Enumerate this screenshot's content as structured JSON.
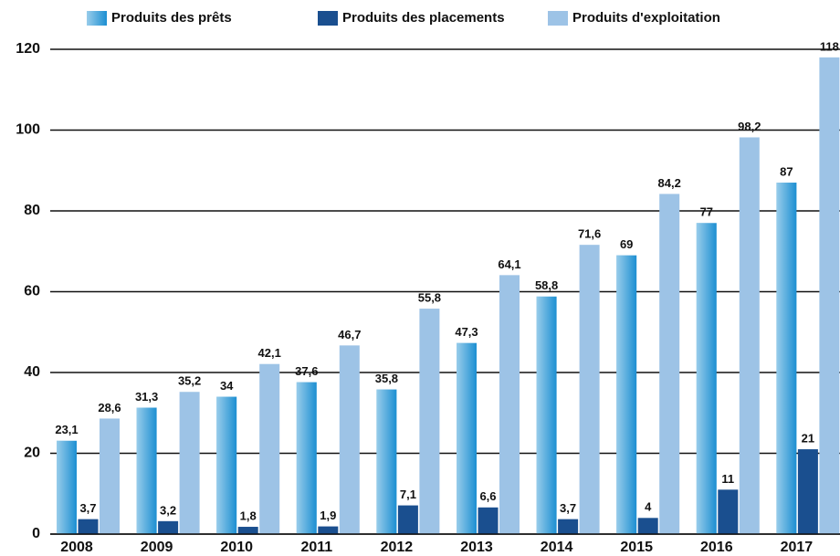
{
  "chart_data": {
    "type": "bar",
    "categories": [
      "2008",
      "2009",
      "2010",
      "2011",
      "2012",
      "2013",
      "2014",
      "2015",
      "2016",
      "2017"
    ],
    "series": [
      {
        "name": "Produits des prêts",
        "color": "#1c8fd2",
        "values": [
          23.1,
          31.3,
          34,
          37.6,
          35.8,
          47.3,
          58.8,
          69,
          77,
          87
        ],
        "value_labels": [
          "23,1",
          "31,3",
          "34",
          "37,6",
          "35,8",
          "47,3",
          "58,8",
          "69",
          "77",
          "87"
        ]
      },
      {
        "name": "Produits des placements",
        "color": "#1a4f8f",
        "values": [
          3.7,
          3.2,
          1.8,
          1.9,
          7.1,
          6.6,
          3.7,
          4,
          11,
          21
        ],
        "value_labels": [
          "3,7",
          "3,2",
          "1,8",
          "1,9",
          "7,1",
          "6,6",
          "3,7",
          "4",
          "11",
          "21"
        ]
      },
      {
        "name": "Produits d'exploitation",
        "color": "#9dc3e6",
        "values": [
          28.6,
          35.2,
          42.1,
          46.7,
          55.8,
          64.1,
          71.6,
          84.2,
          98.2,
          118
        ],
        "value_labels": [
          "28,6",
          "35,2",
          "42,1",
          "46,7",
          "55,8",
          "64,1",
          "71,6",
          "84,2",
          "98,2",
          "118"
        ]
      }
    ],
    "ylim": [
      0,
      120
    ],
    "yticks": [
      0,
      20,
      40,
      60,
      80,
      100,
      120
    ],
    "grid": true,
    "legend": "top"
  }
}
